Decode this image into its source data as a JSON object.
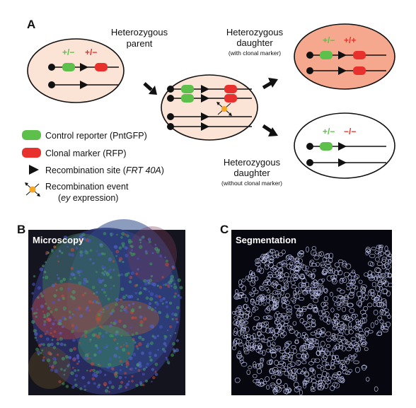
{
  "panels": {
    "a_label": "A",
    "b_label": "B",
    "c_label": "C"
  },
  "parent": {
    "title_line1": "Heterozygous",
    "title_line2": "parent",
    "green_genotype": "+/−",
    "red_genotype": "+/−"
  },
  "daughter_with_marker": {
    "title_line1": "Heterozygous",
    "title_line2": "daughter",
    "note": "(with clonal marker)",
    "green_genotype": "+/−",
    "red_genotype": "+/+"
  },
  "daughter_without_marker": {
    "title_line1": "Heterozygous",
    "title_line2": "daughter",
    "note": "(without clonal marker)",
    "green_genotype": "+/−",
    "red_genotype": "−/−"
  },
  "legend": {
    "control_reporter": "Control reporter (PntGFP)",
    "clonal_marker": "Clonal marker (RFP)",
    "recombination_site_prefix": "Recombination site (",
    "recombination_site_italic": "FRT 40A",
    "recombination_site_suffix": ")",
    "recombination_event_line1": "Recombination event",
    "recombination_event_line2_open": "(",
    "recombination_event_line2_italic": "ey",
    "recombination_event_line2_rest": " expression)"
  },
  "images": {
    "microscopy_label": "Microscopy",
    "segmentation_label": "Segmentation"
  },
  "colors": {
    "green": "#5cc04a",
    "red": "#e8302c",
    "parent_fill": "#fbe3d6",
    "daughter_fill": "#f5a88e",
    "cross_x": "#f5a623"
  }
}
